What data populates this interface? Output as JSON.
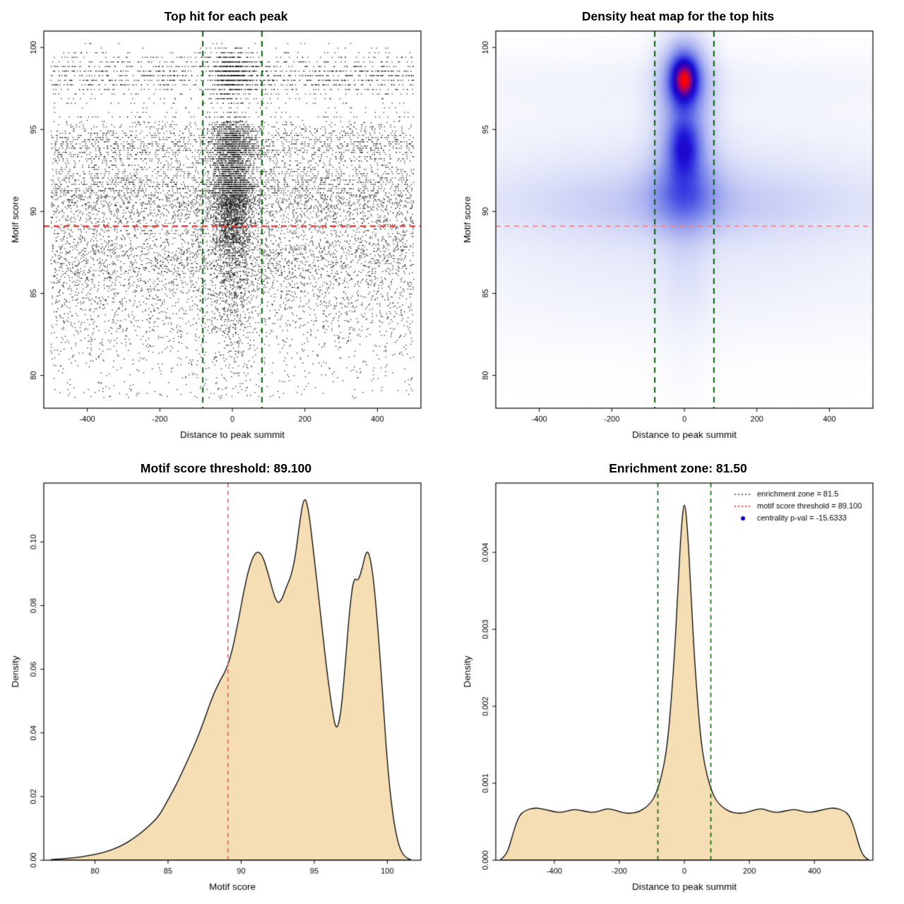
{
  "figure": {
    "background": "#FFFFFF",
    "description": "2x2 R-style motif analysis figure"
  },
  "chart_data": [
    {
      "type": "scatter",
      "title": "Top hit for each peak",
      "xlabel": "Distance to peak summit",
      "ylabel": "Motif score",
      "xlim": [
        -520,
        520
      ],
      "ylim": [
        78,
        101
      ],
      "xticks": [
        -400,
        -200,
        0,
        200,
        400
      ],
      "xtick_labels": [
        "-400",
        "-200",
        "0",
        "200",
        "400"
      ],
      "yticks": [
        80,
        85,
        90,
        95,
        100
      ],
      "ytick_labels": [
        "80",
        "85",
        "90",
        "95",
        "100"
      ],
      "point_color": "#000000",
      "hline": {
        "y": 89.1,
        "color": "#FF1111",
        "dash": [
          8,
          6
        ],
        "width": 2
      },
      "vlines": {
        "x": [
          -81.5,
          81.5
        ],
        "color": "#006400",
        "dash": [
          8,
          6
        ],
        "width": 2
      },
      "sim": {
        "seed": 1337,
        "n": 15000,
        "x_range": [
          -500,
          500
        ],
        "central_sd": 30,
        "central_frac_high": 0.3,
        "central_frac_mid": 0.38,
        "central_frac_low": 0.15,
        "score_mixture": [
          {
            "mean": 90.8,
            "sd": 1.0,
            "w": 0.2
          },
          {
            "mean": 91.8,
            "sd": 0.9,
            "w": 0.1
          },
          {
            "mean": 94.1,
            "sd": 0.85,
            "w": 0.2
          },
          {
            "mean": 98.3,
            "sd": 0.8,
            "w": 0.13
          },
          {
            "mean": 88.3,
            "sd": 1.2,
            "w": 0.15
          },
          {
            "mean": 86.0,
            "sd": 1.6,
            "w": 0.12
          },
          {
            "mean": 83.0,
            "sd": 2.4,
            "w": 0.1
          }
        ]
      }
    },
    {
      "type": "heatmap",
      "title": "Density heat map for the top hits",
      "xlabel": "Distance to peak summit",
      "ylabel": "Motif score",
      "xlim": [
        -520,
        520
      ],
      "ylim": [
        78,
        101
      ],
      "xticks": [
        -400,
        -200,
        0,
        200,
        400
      ],
      "xtick_labels": [
        "-400",
        "-200",
        "0",
        "200",
        "400"
      ],
      "yticks": [
        80,
        85,
        90,
        95,
        100
      ],
      "ytick_labels": [
        "80",
        "85",
        "90",
        "95",
        "100"
      ],
      "hline": {
        "y": 89.1,
        "color": "#FF7777",
        "dash": [
          7,
          6
        ],
        "width": 1.6
      },
      "vlines": {
        "x": [
          -81.5,
          81.5
        ],
        "color": "#006400",
        "dash": [
          8,
          6
        ],
        "width": 2
      },
      "colormap": [
        [
          0.0,
          "#FFFFFF"
        ],
        [
          0.06,
          "#F2F4FC"
        ],
        [
          0.15,
          "#DADEF8"
        ],
        [
          0.3,
          "#AAB2F0"
        ],
        [
          0.45,
          "#707CE8"
        ],
        [
          0.58,
          "#3A3FE0"
        ],
        [
          0.68,
          "#1A0ED8"
        ],
        [
          0.78,
          "#2B00B8"
        ],
        [
          0.86,
          "#70009A"
        ],
        [
          0.93,
          "#C4003C"
        ],
        [
          1.0,
          "#FF0000"
        ]
      ],
      "blobs": [
        {
          "x": 0,
          "y": 98.1,
          "sx": 26,
          "sy": 1.0,
          "w": 1.0
        },
        {
          "x": 0,
          "y": 98.1,
          "sx": 50,
          "sy": 1.8,
          "w": 0.5
        },
        {
          "x": 0,
          "y": 94.0,
          "sx": 30,
          "sy": 1.2,
          "w": 0.6
        },
        {
          "x": 0,
          "y": 93.6,
          "sx": 60,
          "sy": 2.4,
          "w": 0.28
        },
        {
          "x": 0,
          "y": 91.0,
          "sx": 70,
          "sy": 1.4,
          "w": 0.3
        },
        {
          "x": 0,
          "y": 90.6,
          "sx": 300,
          "sy": 1.5,
          "w": 0.14
        },
        {
          "x": 0,
          "y": 90.6,
          "sx": 560,
          "sy": 1.6,
          "w": 0.12
        },
        {
          "x": 0,
          "y": 93.8,
          "sx": 560,
          "sy": 1.8,
          "w": 0.09
        },
        {
          "x": 0,
          "y": 97.9,
          "sx": 560,
          "sy": 1.3,
          "w": 0.07
        },
        {
          "x": 0,
          "y": 85.0,
          "sx": 560,
          "sy": 2.4,
          "w": 0.06
        },
        {
          "x": 0,
          "y": 88.0,
          "sx": 560,
          "sy": 2.0,
          "w": 0.07
        },
        {
          "x": 0,
          "y": 92.0,
          "sx": 45,
          "sy": 7.0,
          "w": 0.1
        }
      ]
    },
    {
      "type": "density",
      "title": "Motif score threshold: 89.100",
      "xlabel": "Motif score",
      "ylabel": "Density",
      "xlim": [
        76.5,
        102.3
      ],
      "ylim": [
        0,
        0.1185
      ],
      "xticks": [
        80,
        85,
        90,
        95,
        100
      ],
      "xtick_labels": [
        "80",
        "85",
        "90",
        "95",
        "100"
      ],
      "yticks": [
        0,
        0.02,
        0.04,
        0.06,
        0.08,
        0.1
      ],
      "ytick_labels": [
        "0.00",
        "0.02",
        "0.04",
        "0.06",
        "0.08",
        "0.10"
      ],
      "fill": "#F5DEB3",
      "stroke": "#000000",
      "vlines": {
        "x": [
          89.1
        ],
        "color": "#E05C5C",
        "dash": [
          6,
          5
        ],
        "width": 1.5
      },
      "curve": {
        "mirror": false,
        "x": [
          77,
          78,
          79,
          80,
          80.7,
          81.4,
          82,
          82.6,
          83.2,
          83.8,
          84.4,
          85,
          85.6,
          86.2,
          86.8,
          87.4,
          88,
          88.5,
          89,
          89.4,
          89.8,
          90.2,
          90.6,
          91,
          91.4,
          91.8,
          92.2,
          92.5,
          92.8,
          93.1,
          93.4,
          93.7,
          94,
          94.3,
          94.6,
          95,
          95.4,
          95.8,
          96.2,
          96.5,
          96.8,
          97.1,
          97.4,
          97.7,
          98,
          98.3,
          98.6,
          98.9,
          99.2,
          99.6,
          100,
          100.4,
          100.8,
          101.2,
          101.6
        ],
        "y": [
          0.0002,
          0.0005,
          0.001,
          0.0018,
          0.0026,
          0.0037,
          0.005,
          0.0067,
          0.0088,
          0.0112,
          0.014,
          0.019,
          0.024,
          0.03,
          0.036,
          0.043,
          0.051,
          0.056,
          0.06,
          0.066,
          0.075,
          0.085,
          0.093,
          0.097,
          0.0965,
          0.091,
          0.084,
          0.0805,
          0.082,
          0.086,
          0.089,
          0.095,
          0.106,
          0.1145,
          0.111,
          0.095,
          0.079,
          0.062,
          0.048,
          0.0405,
          0.045,
          0.06,
          0.078,
          0.089,
          0.0875,
          0.092,
          0.098,
          0.094,
          0.082,
          0.058,
          0.03,
          0.013,
          0.004,
          0.001,
          0.0002
        ]
      }
    },
    {
      "type": "density",
      "title": "Enrichment zone: 81.50",
      "xlabel": "Distance to peak summit",
      "ylabel": "Density",
      "xlim": [
        -580,
        580
      ],
      "ylim": [
        0,
        0.0049
      ],
      "xticks": [
        -400,
        -200,
        0,
        200,
        400
      ],
      "xtick_labels": [
        "-400",
        "-200",
        "0",
        "200",
        "400"
      ],
      "yticks": [
        0,
        0.001,
        0.002,
        0.003,
        0.004
      ],
      "ytick_labels": [
        "0.000",
        "0.001",
        "0.002",
        "0.003",
        "0.004"
      ],
      "fill": "#F5DEB3",
      "stroke": "#000000",
      "vlines": {
        "x": [
          -81.5,
          81.5
        ],
        "color": "#006400",
        "dash": [
          6,
          5
        ],
        "width": 1.6
      },
      "legend": [
        {
          "type": "line",
          "color": "#006400",
          "dash": [
            2,
            3
          ],
          "label": "enrichment zone = 81.5"
        },
        {
          "type": "line",
          "color": "#FF0000",
          "dash": [
            2,
            3
          ],
          "label": "motif score threshold = 89.100"
        },
        {
          "type": "point",
          "color": "#0000CC",
          "label": "centrality p-val = -15.6333"
        }
      ],
      "curve": {
        "mirror": true,
        "x": [
          -565,
          -550,
          -538,
          -525,
          -512,
          -500,
          -480,
          -460,
          -440,
          -420,
          -400,
          -380,
          -360,
          -340,
          -320,
          -300,
          -280,
          -260,
          -240,
          -220,
          -200,
          -180,
          -160,
          -140,
          -120,
          -105,
          -92,
          -80,
          -70,
          -60,
          -50,
          -40,
          -30,
          -20,
          -10,
          0
        ],
        "y": [
          1e-05,
          6e-05,
          0.00018,
          0.00038,
          0.00054,
          0.00062,
          0.00066,
          0.00068,
          0.00067,
          0.00065,
          0.00063,
          0.00062,
          0.00064,
          0.00066,
          0.00065,
          0.00063,
          0.00062,
          0.00064,
          0.00067,
          0.00066,
          0.00063,
          0.00061,
          0.00061,
          0.00063,
          0.00068,
          0.00074,
          0.00082,
          0.00095,
          0.0011,
          0.0013,
          0.0016,
          0.0021,
          0.0027,
          0.0035,
          0.0043,
          0.00472
        ]
      }
    }
  ]
}
